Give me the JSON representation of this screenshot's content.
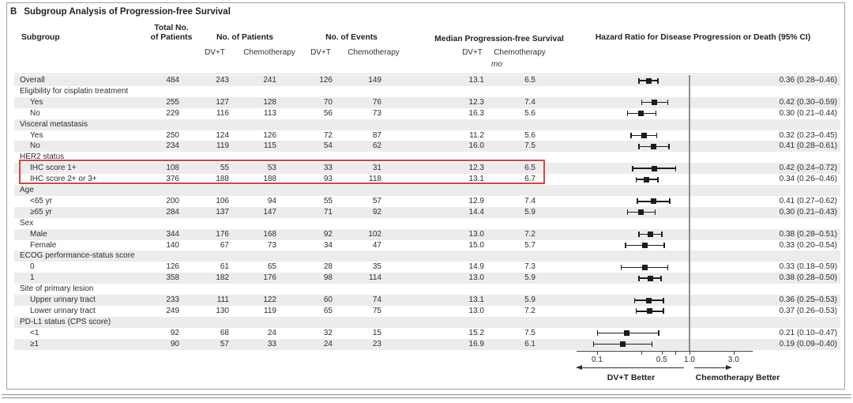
{
  "panel": {
    "letter": "B",
    "title": "Subgroup Analysis of Progression-free Survival"
  },
  "header": {
    "subgroup": "Subgroup",
    "total_line1": "Total No.",
    "total_line2": "of Patients",
    "patients_group": "No. of Patients",
    "events_group": "No. of Events",
    "median_group": "Median Progression-free Survival",
    "hr_group": "Hazard Ratio for Disease Progression or Death (95% CI)",
    "arm_dvt_patients": "DV+T",
    "arm_chemo_patients": "Chemotherapy",
    "arm_dvt_events": "DV+T",
    "arm_chemo_events": "Chemotherapy",
    "arm_dvt_median": "DV+T",
    "arm_chemo_median": "Chemotherapy",
    "median_unit": "mo"
  },
  "footer": {
    "left_better": "DV+T Better",
    "right_better": "Chemotherapy Better"
  },
  "colors": {
    "highlight": "#d9453c",
    "row_shade": "#ececec",
    "marker": "#1c1c1c"
  },
  "highlight": {
    "first_row_index": 8,
    "last_row_index": 9
  },
  "chart_data": {
    "type": "scatter",
    "subtype": "forest-plot",
    "title": "Subgroup Analysis of Progression-free Survival",
    "x_axis_label": "Hazard Ratio for Disease Progression or Death (95% CI)",
    "x_scale": "log",
    "x_range": [
      0.08,
      4.0
    ],
    "reference_line": 1.0,
    "x_ticks": [
      0.1,
      0.3,
      0.5,
      0.7,
      1.0,
      3.0
    ],
    "x_tick_labels": [
      {
        "value": 0.1,
        "label": "0.1"
      },
      {
        "value": 0.5,
        "label": "0.5"
      },
      {
        "value": 1.0,
        "label": "1.0"
      },
      {
        "value": 3.0,
        "label": "3.0"
      }
    ],
    "rows": [
      {
        "label": "Overall",
        "indent": false,
        "total": "484",
        "patients_dvt": "243",
        "patients_chemo": "241",
        "events_dvt": "126",
        "events_chemo": "149",
        "median_dvt": "13.1",
        "median_chemo": "6.5",
        "hr": 0.36,
        "ci_low": 0.28,
        "ci_high": 0.46,
        "hr_text": "0.36 (0.28–0.46)"
      },
      {
        "label": "Eligibility for cisplatin treatment",
        "indent": false
      },
      {
        "label": "Yes",
        "indent": true,
        "total": "255",
        "patients_dvt": "127",
        "patients_chemo": "128",
        "events_dvt": "70",
        "events_chemo": "76",
        "median_dvt": "12.3",
        "median_chemo": "7.4",
        "hr": 0.42,
        "ci_low": 0.3,
        "ci_high": 0.59,
        "hr_text": "0.42 (0.30–0.59)"
      },
      {
        "label": "No",
        "indent": true,
        "total": "229",
        "patients_dvt": "116",
        "patients_chemo": "113",
        "events_dvt": "56",
        "events_chemo": "73",
        "median_dvt": "16.3",
        "median_chemo": "5.6",
        "hr": 0.3,
        "ci_low": 0.21,
        "ci_high": 0.44,
        "hr_text": "0.30 (0.21–0.44)"
      },
      {
        "label": "Visceral metastasis",
        "indent": false
      },
      {
        "label": "Yes",
        "indent": true,
        "total": "250",
        "patients_dvt": "124",
        "patients_chemo": "126",
        "events_dvt": "72",
        "events_chemo": "87",
        "median_dvt": "11.2",
        "median_chemo": "5.6",
        "hr": 0.32,
        "ci_low": 0.23,
        "ci_high": 0.45,
        "hr_text": "0.32 (0.23–0.45)"
      },
      {
        "label": "No",
        "indent": true,
        "total": "234",
        "patients_dvt": "119",
        "patients_chemo": "115",
        "events_dvt": "54",
        "events_chemo": "62",
        "median_dvt": "16.0",
        "median_chemo": "7.5",
        "hr": 0.41,
        "ci_low": 0.28,
        "ci_high": 0.61,
        "hr_text": "0.41 (0.28–0.61)"
      },
      {
        "label": "HER2 status",
        "indent": false
      },
      {
        "label": "IHC score 1+",
        "indent": true,
        "total": "108",
        "patients_dvt": "55",
        "patients_chemo": "53",
        "events_dvt": "33",
        "events_chemo": "31",
        "median_dvt": "12.3",
        "median_chemo": "6.5",
        "hr": 0.42,
        "ci_low": 0.24,
        "ci_high": 0.72,
        "hr_text": "0.42 (0.24–0.72)"
      },
      {
        "label": "IHC score 2+ or 3+",
        "indent": true,
        "total": "376",
        "patients_dvt": "188",
        "patients_chemo": "188",
        "events_dvt": "93",
        "events_chemo": "118",
        "median_dvt": "13.1",
        "median_chemo": "6.7",
        "hr": 0.34,
        "ci_low": 0.26,
        "ci_high": 0.46,
        "hr_text": "0.34 (0.26–0.46)"
      },
      {
        "label": "Age",
        "indent": false
      },
      {
        "label": "<65 yr",
        "indent": true,
        "total": "200",
        "patients_dvt": "106",
        "patients_chemo": "94",
        "events_dvt": "55",
        "events_chemo": "57",
        "median_dvt": "12.9",
        "median_chemo": "7.4",
        "hr": 0.41,
        "ci_low": 0.27,
        "ci_high": 0.62,
        "hr_text": "0.41 (0.27–0.62)"
      },
      {
        "label": "≥65 yr",
        "indent": true,
        "total": "284",
        "patients_dvt": "137",
        "patients_chemo": "147",
        "events_dvt": "71",
        "events_chemo": "92",
        "median_dvt": "14.4",
        "median_chemo": "5.9",
        "hr": 0.3,
        "ci_low": 0.21,
        "ci_high": 0.43,
        "hr_text": "0.30 (0.21–0.43)"
      },
      {
        "label": "Sex",
        "indent": false
      },
      {
        "label": "Male",
        "indent": true,
        "total": "344",
        "patients_dvt": "176",
        "patients_chemo": "168",
        "events_dvt": "92",
        "events_chemo": "102",
        "median_dvt": "13.0",
        "median_chemo": "7.2",
        "hr": 0.38,
        "ci_low": 0.28,
        "ci_high": 0.51,
        "hr_text": "0.38 (0.28–0.51)"
      },
      {
        "label": "Female",
        "indent": true,
        "total": "140",
        "patients_dvt": "67",
        "patients_chemo": "73",
        "events_dvt": "34",
        "events_chemo": "47",
        "median_dvt": "15.0",
        "median_chemo": "5.7",
        "hr": 0.33,
        "ci_low": 0.2,
        "ci_high": 0.54,
        "hr_text": "0.33 (0.20–0.54)"
      },
      {
        "label": "ECOG performance-status score",
        "indent": false
      },
      {
        "label": "0",
        "indent": true,
        "total": "126",
        "patients_dvt": "61",
        "patients_chemo": "65",
        "events_dvt": "28",
        "events_chemo": "35",
        "median_dvt": "14.9",
        "median_chemo": "7.3",
        "hr": 0.33,
        "ci_low": 0.18,
        "ci_high": 0.59,
        "hr_text": "0.33 (0.18–0.59)"
      },
      {
        "label": "1",
        "indent": true,
        "total": "358",
        "patients_dvt": "182",
        "patients_chemo": "176",
        "events_dvt": "98",
        "events_chemo": "114",
        "median_dvt": "13.0",
        "median_chemo": "5.9",
        "hr": 0.38,
        "ci_low": 0.28,
        "ci_high": 0.5,
        "hr_text": "0.38 (0.28–0.50)"
      },
      {
        "label": "Site of primary lesion",
        "indent": false
      },
      {
        "label": "Upper urinary tract",
        "indent": true,
        "total": "233",
        "patients_dvt": "111",
        "patients_chemo": "122",
        "events_dvt": "60",
        "events_chemo": "74",
        "median_dvt": "13.1",
        "median_chemo": "5.9",
        "hr": 0.36,
        "ci_low": 0.25,
        "ci_high": 0.53,
        "hr_text": "0.36 (0.25–0.53)"
      },
      {
        "label": "Lower urinary tract",
        "indent": true,
        "total": "249",
        "patients_dvt": "130",
        "patients_chemo": "119",
        "events_dvt": "65",
        "events_chemo": "75",
        "median_dvt": "13.0",
        "median_chemo": "7.2",
        "hr": 0.37,
        "ci_low": 0.26,
        "ci_high": 0.53,
        "hr_text": "0.37 (0.26–0.53)"
      },
      {
        "label": "PD-L1 status (CPS score)",
        "indent": false
      },
      {
        "label": "<1",
        "indent": true,
        "total": "92",
        "patients_dvt": "68",
        "patients_chemo": "24",
        "events_dvt": "32",
        "events_chemo": "15",
        "median_dvt": "15.2",
        "median_chemo": "7.5",
        "hr": 0.21,
        "ci_low": 0.1,
        "ci_high": 0.47,
        "hr_text": "0.21 (0.10–0.47)"
      },
      {
        "label": "≥1",
        "indent": true,
        "total": "90",
        "patients_dvt": "57",
        "patients_chemo": "33",
        "events_dvt": "24",
        "events_chemo": "23",
        "median_dvt": "16.9",
        "median_chemo": "6.1",
        "hr": 0.19,
        "ci_low": 0.09,
        "ci_high": 0.4,
        "hr_text": "0.19 (0.09–0.40)"
      }
    ]
  }
}
